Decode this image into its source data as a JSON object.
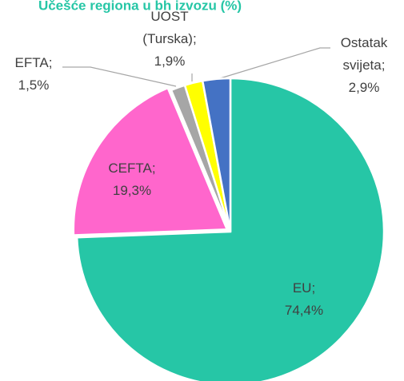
{
  "chart_data": {
    "type": "pie",
    "title": "Učešće regiona u bh izvozu (%)",
    "categories": [
      "EU",
      "CEFTA",
      "EFTA",
      "UOST (Turska)",
      "Ostatak svijeta"
    ],
    "values": [
      74.4,
      19.3,
      1.5,
      1.9,
      2.9
    ],
    "value_labels": [
      "74,4%",
      "19,3%",
      "1,5%",
      "1,9%",
      "2,9%"
    ],
    "label_separator": ";",
    "colors": [
      "#26c6a6",
      "#ff66cc",
      "#a6a6a6",
      "#ffff00",
      "#4472c4"
    ]
  }
}
